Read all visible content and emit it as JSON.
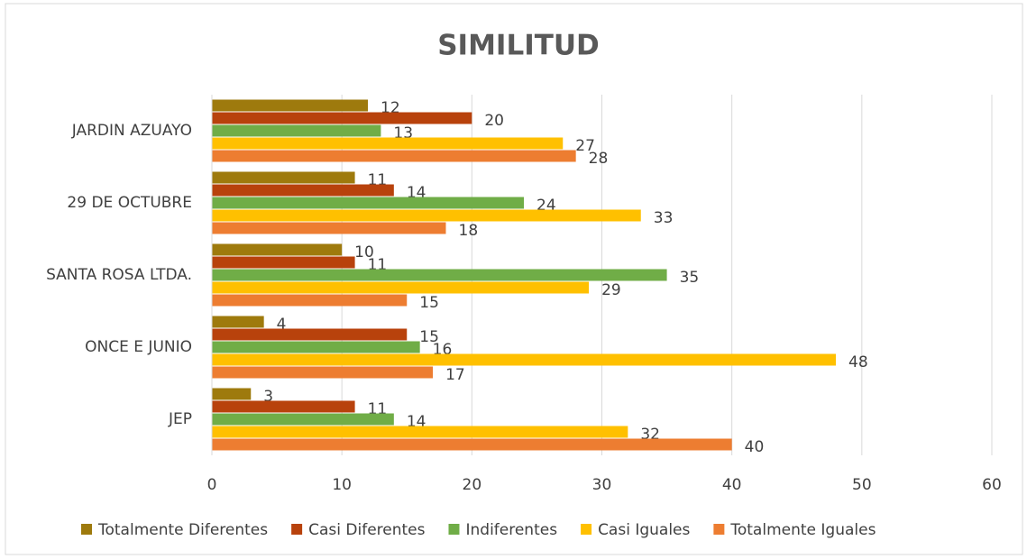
{
  "chart_data": {
    "type": "hbar",
    "title": "SIMILITUD",
    "categories": [
      "JEP",
      "ONCE E JUNIO",
      "SANTA ROSA LTDA.",
      "29 DE OCTUBRE",
      "JARDIN AZUAYO"
    ],
    "series": [
      {
        "name": "Totalmente Diferentes",
        "color": "#9e7a0d",
        "values": [
          3,
          4,
          10,
          11,
          12
        ]
      },
      {
        "name": "Casi Diferentes",
        "color": "#b8420c",
        "values": [
          11,
          15,
          11,
          14,
          20
        ]
      },
      {
        "name": "Indiferentes",
        "color": "#70ad47",
        "values": [
          14,
          16,
          35,
          24,
          13
        ]
      },
      {
        "name": "Casi Iguales",
        "color": "#ffc000",
        "values": [
          32,
          48,
          29,
          33,
          27
        ]
      },
      {
        "name": "Totalmente Iguales",
        "color": "#ed7d31",
        "values": [
          40,
          17,
          15,
          18,
          28
        ]
      }
    ],
    "xlim": [
      0,
      60
    ],
    "xticks": [
      0,
      10,
      20,
      30,
      40,
      50,
      60
    ],
    "grid": true,
    "legend": "bottom"
  }
}
